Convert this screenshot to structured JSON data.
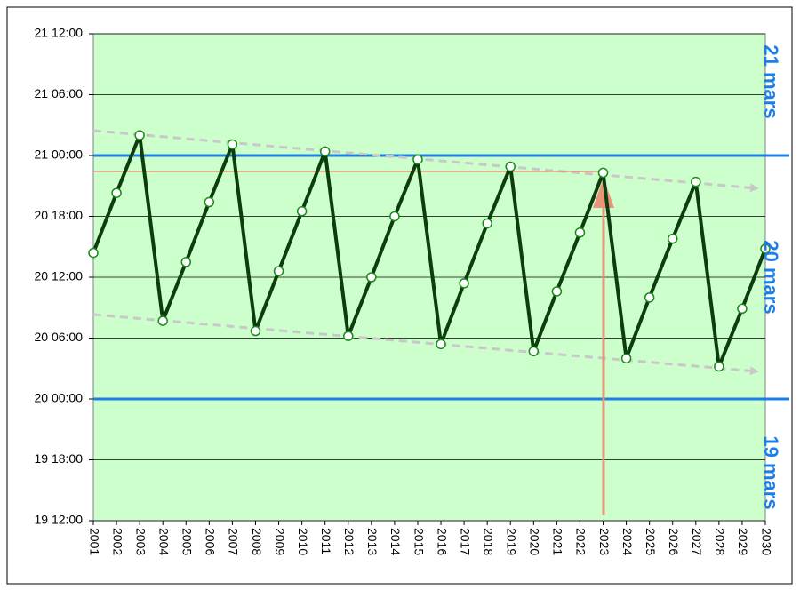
{
  "chart_data": {
    "type": "line",
    "categories": [
      "2001",
      "2002",
      "2003",
      "2004",
      "2005",
      "2006",
      "2007",
      "2008",
      "2009",
      "2010",
      "2011",
      "2012",
      "2013",
      "2014",
      "2015",
      "2016",
      "2017",
      "2018",
      "2019",
      "2020",
      "2021",
      "2022",
      "2023",
      "2024",
      "2025",
      "2026",
      "2027",
      "2028",
      "2029",
      "2030"
    ],
    "series": [
      {
        "color": "#0d3d0d",
        "values": [
          38.4,
          44.3,
          50.0,
          31.7,
          37.5,
          43.4,
          49.1,
          30.7,
          36.6,
          42.5,
          48.4,
          30.2,
          36.0,
          42.0,
          47.6,
          29.4,
          35.4,
          41.3,
          46.9,
          28.7,
          34.6,
          40.4,
          46.3,
          28.0,
          34.0,
          39.8,
          45.4,
          27.2,
          32.9,
          38.8
        ]
      }
    ],
    "ylim": [
      12,
      60
    ],
    "yticks": [
      {
        "value": 12,
        "label": "19 12:00"
      },
      {
        "value": 18,
        "label": "19 18:00"
      },
      {
        "value": 24,
        "label": "20 00:00"
      },
      {
        "value": 30,
        "label": "20 06:00"
      },
      {
        "value": 36,
        "label": "20 12:00"
      },
      {
        "value": 42,
        "label": "20 18:00"
      },
      {
        "value": 48,
        "label": "21 00:00"
      },
      {
        "value": 54,
        "label": "21 06:00"
      },
      {
        "value": 60,
        "label": "21 12:00"
      }
    ],
    "grid": true,
    "reference_lines": [
      {
        "value": 48,
        "color": "#1a7fe8"
      },
      {
        "value": 24,
        "color": "#1a7fe8"
      }
    ],
    "day_labels": [
      "21 mars",
      "20 mars",
      "19 mars"
    ],
    "plot_background": "#ccffcc"
  }
}
